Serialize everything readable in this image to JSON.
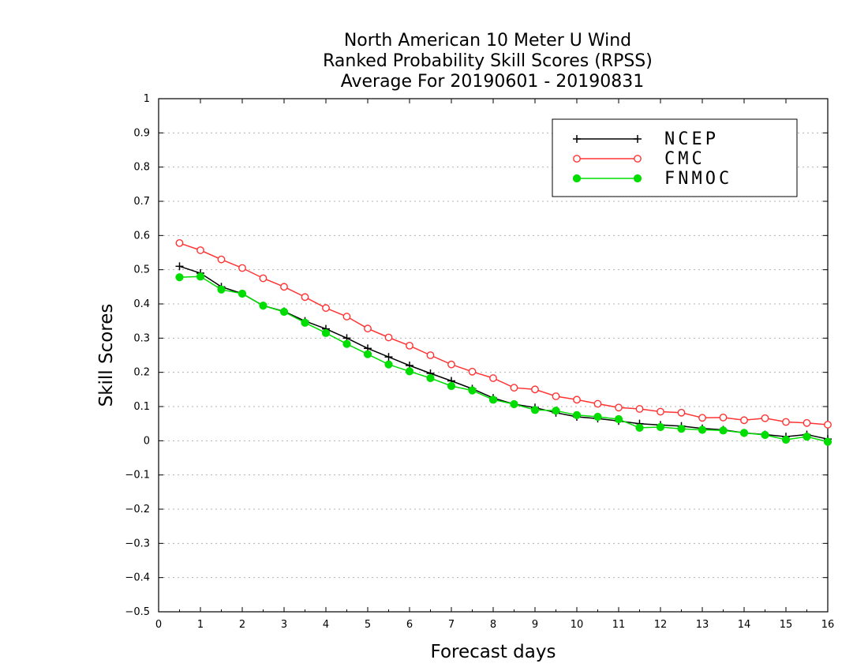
{
  "chart_data": {
    "type": "line",
    "title": [
      "North American 10 Meter U Wind",
      "Ranked Probability Skill Scores (RPSS)",
      "Average For 20190601 - 20190831"
    ],
    "xlabel": "Forecast days",
    "ylabel": "Skill Scores",
    "xlim": [
      0,
      16
    ],
    "ylim": [
      -0.5,
      1
    ],
    "xticks": [
      "0",
      "1",
      "2",
      "3",
      "4",
      "5",
      "6",
      "7",
      "8",
      "9",
      "10",
      "11",
      "12",
      "13",
      "14",
      "15",
      "16"
    ],
    "yticks": [
      "−0.5",
      "−0.4",
      "−0.3",
      "−0.2",
      "−0.1",
      "0",
      "0.1",
      "0.2",
      "0.3",
      "0.4",
      "0.5",
      "0.6",
      "0.7",
      "0.8",
      "0.9",
      "1"
    ],
    "grid": true,
    "legend_position": "top-right",
    "x": [
      0.5,
      1,
      1.5,
      2,
      2.5,
      3,
      3.5,
      4,
      4.5,
      5,
      5.5,
      6,
      6.5,
      7,
      7.5,
      8,
      8.5,
      9,
      9.5,
      10,
      10.5,
      11,
      11.5,
      12,
      12.5,
      13,
      13.5,
      14,
      14.5,
      15,
      15.5,
      16
    ],
    "series": [
      {
        "name": "NCEP",
        "color": "#000000",
        "marker": "plus",
        "values": [
          0.51,
          0.49,
          0.45,
          0.43,
          0.395,
          0.378,
          0.35,
          0.327,
          0.3,
          0.27,
          0.245,
          0.22,
          0.197,
          0.175,
          0.152,
          0.125,
          0.107,
          0.097,
          0.082,
          0.07,
          0.065,
          0.058,
          0.05,
          0.046,
          0.043,
          0.036,
          0.032,
          0.023,
          0.018,
          0.012,
          0.018,
          0.005
        ]
      },
      {
        "name": "CMC",
        "color": "#ff3333",
        "marker": "open-circle",
        "values": [
          0.578,
          0.557,
          0.53,
          0.505,
          0.475,
          0.45,
          0.42,
          0.388,
          0.363,
          0.328,
          0.302,
          0.278,
          0.25,
          0.223,
          0.202,
          0.183,
          0.155,
          0.15,
          0.13,
          0.12,
          0.108,
          0.097,
          0.093,
          0.085,
          0.082,
          0.067,
          0.068,
          0.06,
          0.066,
          0.055,
          0.052,
          0.047
        ]
      },
      {
        "name": "FNMOC",
        "color": "#00dd00",
        "marker": "filled-circle",
        "values": [
          0.478,
          0.48,
          0.442,
          0.43,
          0.395,
          0.377,
          0.345,
          0.315,
          0.283,
          0.253,
          0.223,
          0.203,
          0.183,
          0.16,
          0.147,
          0.12,
          0.107,
          0.09,
          0.088,
          0.075,
          0.07,
          0.063,
          0.038,
          0.04,
          0.035,
          0.032,
          0.03,
          0.023,
          0.017,
          0.003,
          0.012,
          -0.003
        ]
      }
    ]
  }
}
